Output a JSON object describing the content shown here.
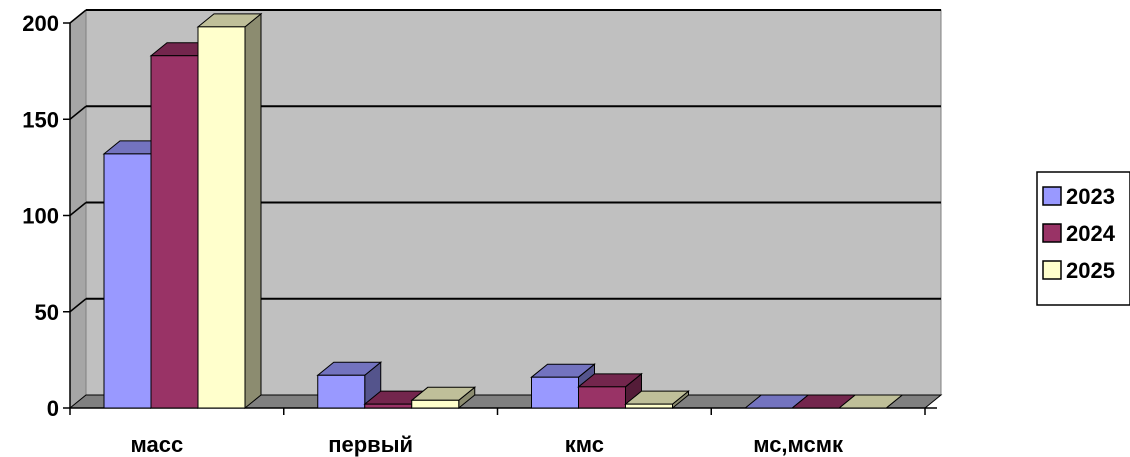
{
  "chart_data": {
    "type": "bar",
    "categories": [
      "масс",
      "первый",
      "кмс",
      "мс,мсмк"
    ],
    "series": [
      {
        "name": "2023",
        "values": [
          132,
          17,
          16,
          0
        ],
        "color": "#9999ff"
      },
      {
        "name": "2024",
        "values": [
          183,
          2,
          11,
          0
        ],
        "color": "#993366"
      },
      {
        "name": "2025",
        "values": [
          198,
          4,
          2,
          0
        ],
        "color": "#ffffcc"
      }
    ],
    "ylim": [
      0,
      200
    ],
    "yticks": [
      0,
      50,
      100,
      150,
      200
    ],
    "grid": true,
    "legend": "right",
    "style": "3d-clustered-column",
    "colors": {
      "wall": "#c0c0c0",
      "floor": "#808080"
    }
  }
}
